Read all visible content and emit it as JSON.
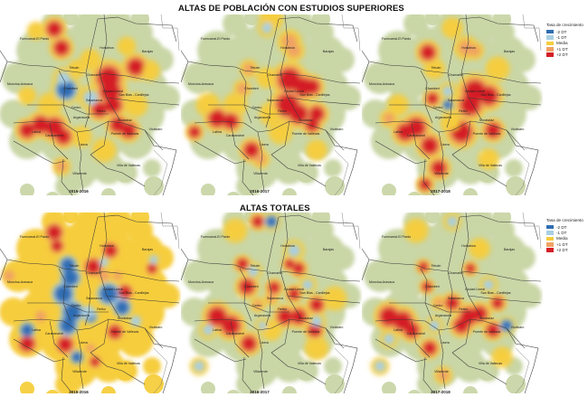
{
  "sections": [
    {
      "title": "ALTAS DE POBLACIÓN CON ESTUDIOS SUPERIORES",
      "maps": [
        {
          "period": "2015-2016"
        },
        {
          "period": "2016-2017"
        },
        {
          "period": "2017-2018"
        }
      ],
      "legend": {
        "title": "Tasa de crecimiento",
        "items": [
          {
            "label": "-2 DT",
            "color": "#2f6db3"
          },
          {
            "label": "-1 DT",
            "color": "#a9cfe2"
          },
          {
            "label": "Media",
            "color": "#f6cd3c"
          },
          {
            "label": "+1 DT",
            "color": "#f0a265"
          },
          {
            "label": "+2 DT",
            "color": "#d41f26"
          }
        ]
      }
    },
    {
      "title": "ALTAS TOTALES",
      "maps": [
        {
          "period": "2015-2016"
        },
        {
          "period": "2016-2017"
        },
        {
          "period": "2017-2018"
        }
      ],
      "legend": {
        "title": "Tasa de crecimiento",
        "items": [
          {
            "label": "-2 DT",
            "color": "#2f6db3"
          },
          {
            "label": "-1 DT",
            "color": "#a9cfe2"
          },
          {
            "label": "Media",
            "color": "#f6cd3c"
          },
          {
            "label": "+1 DT",
            "color": "#f0a265"
          },
          {
            "label": "+2 DT",
            "color": "#d41f26"
          }
        ]
      }
    }
  ],
  "districts": [
    "Fuencarral-El Pardo",
    "Hortaleza",
    "Barajas",
    "Tetuán",
    "Chamartín",
    "Moncloa-Aravaca",
    "Chamberí",
    "Ciudad Lineal",
    "San Blas - Canillejas",
    "Salamanca",
    "Centro",
    "Retiro",
    "Latina",
    "Carabanchel",
    "Arganzuela",
    "Moratalaz",
    "Puente de Vallecas",
    "Usera",
    "Vicálvaro",
    "Villaverde",
    "Villa de Vallecas"
  ],
  "colors": {
    "base": "#c9d6a6",
    "low2": "#2f6db3",
    "low1": "#a9cfe2",
    "mean": "#f6cd3c",
    "high1": "#f0a265",
    "high2": "#d41f26"
  }
}
